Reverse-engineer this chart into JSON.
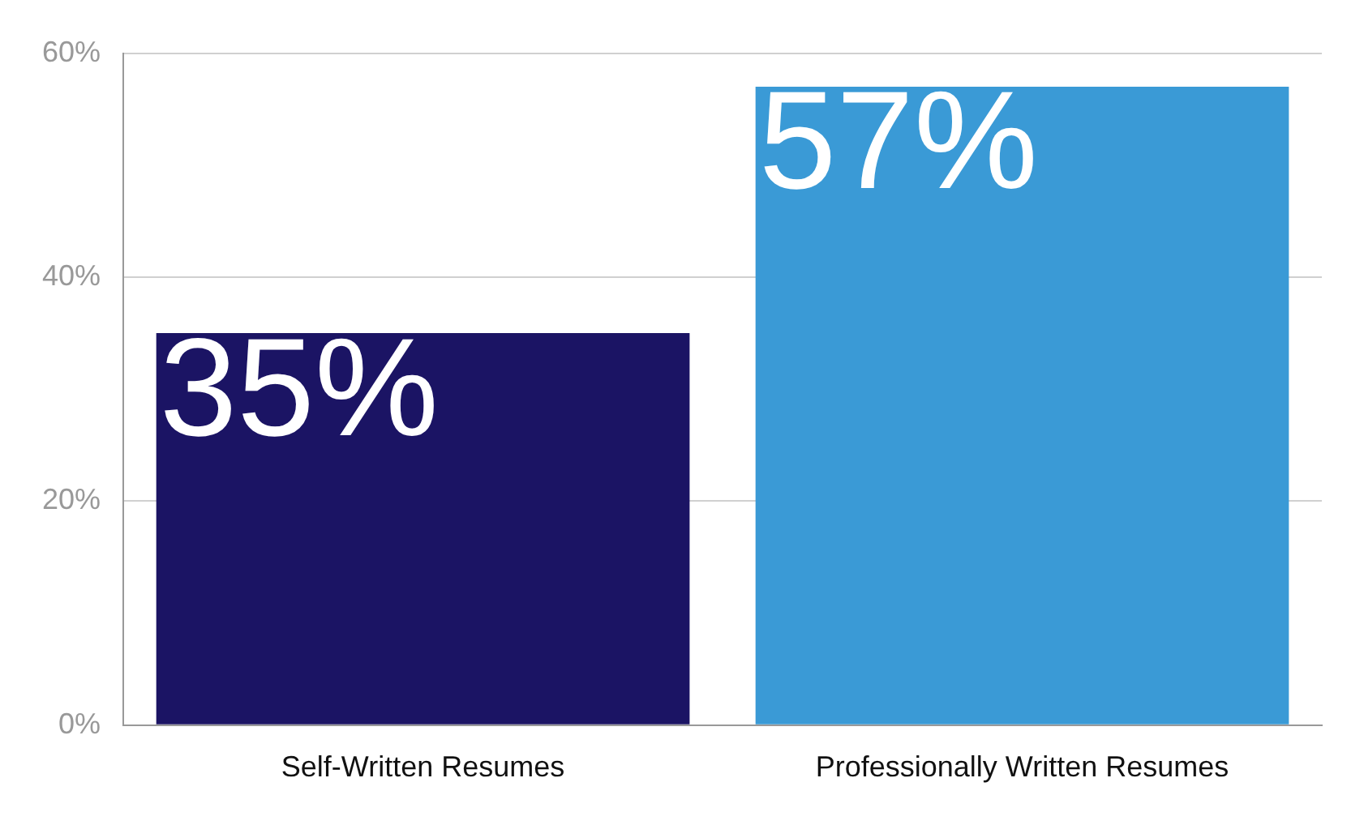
{
  "chart_data": {
    "type": "bar",
    "categories": [
      "Self-Written Resumes",
      "Professionally Written Resumes"
    ],
    "values": [
      35,
      57
    ],
    "colors": [
      "#1b1464",
      "#3a9ad6"
    ],
    "ylim": [
      0,
      60
    ],
    "yticks": [
      {
        "value": 0,
        "label": "0%"
      },
      {
        "value": 20,
        "label": "20%"
      },
      {
        "value": 40,
        "label": "40%"
      },
      {
        "value": 60,
        "label": "60%"
      }
    ],
    "value_labels": [
      "35%",
      "57%"
    ],
    "grid": "y",
    "legend": false
  }
}
